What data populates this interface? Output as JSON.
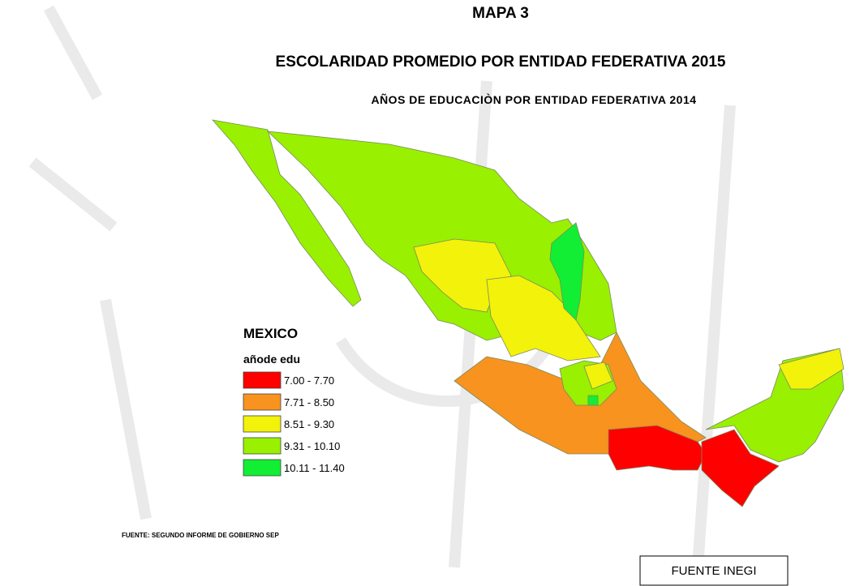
{
  "header": {
    "label": "MAPA 3",
    "title": "ESCOLARIDAD PROMEDIO POR ENTIDAD FEDERATIVA 2015"
  },
  "map": {
    "subtitle": "AÑOS DE EDUCACIÒN POR ENTIDAD FEDERATIVA 2014",
    "legend": {
      "title": "MEXICO",
      "field": "añode edu",
      "items": [
        {
          "label": "7.00 - 7.70",
          "color": "#ff0000"
        },
        {
          "label": "7.71 - 8.50",
          "color": "#f7931e"
        },
        {
          "label": "8.51 - 9.30",
          "color": "#f2f20a"
        },
        {
          "label": "9.31 - 10.10",
          "color": "#99f000"
        },
        {
          "label": "10.11 - 11.40",
          "color": "#11ee33"
        }
      ]
    },
    "source": "FUENTE: SEGUNDO INFORME DE GOBIERNO SEP"
  },
  "footer": {
    "source_box": "FUENTE INEGI"
  }
}
